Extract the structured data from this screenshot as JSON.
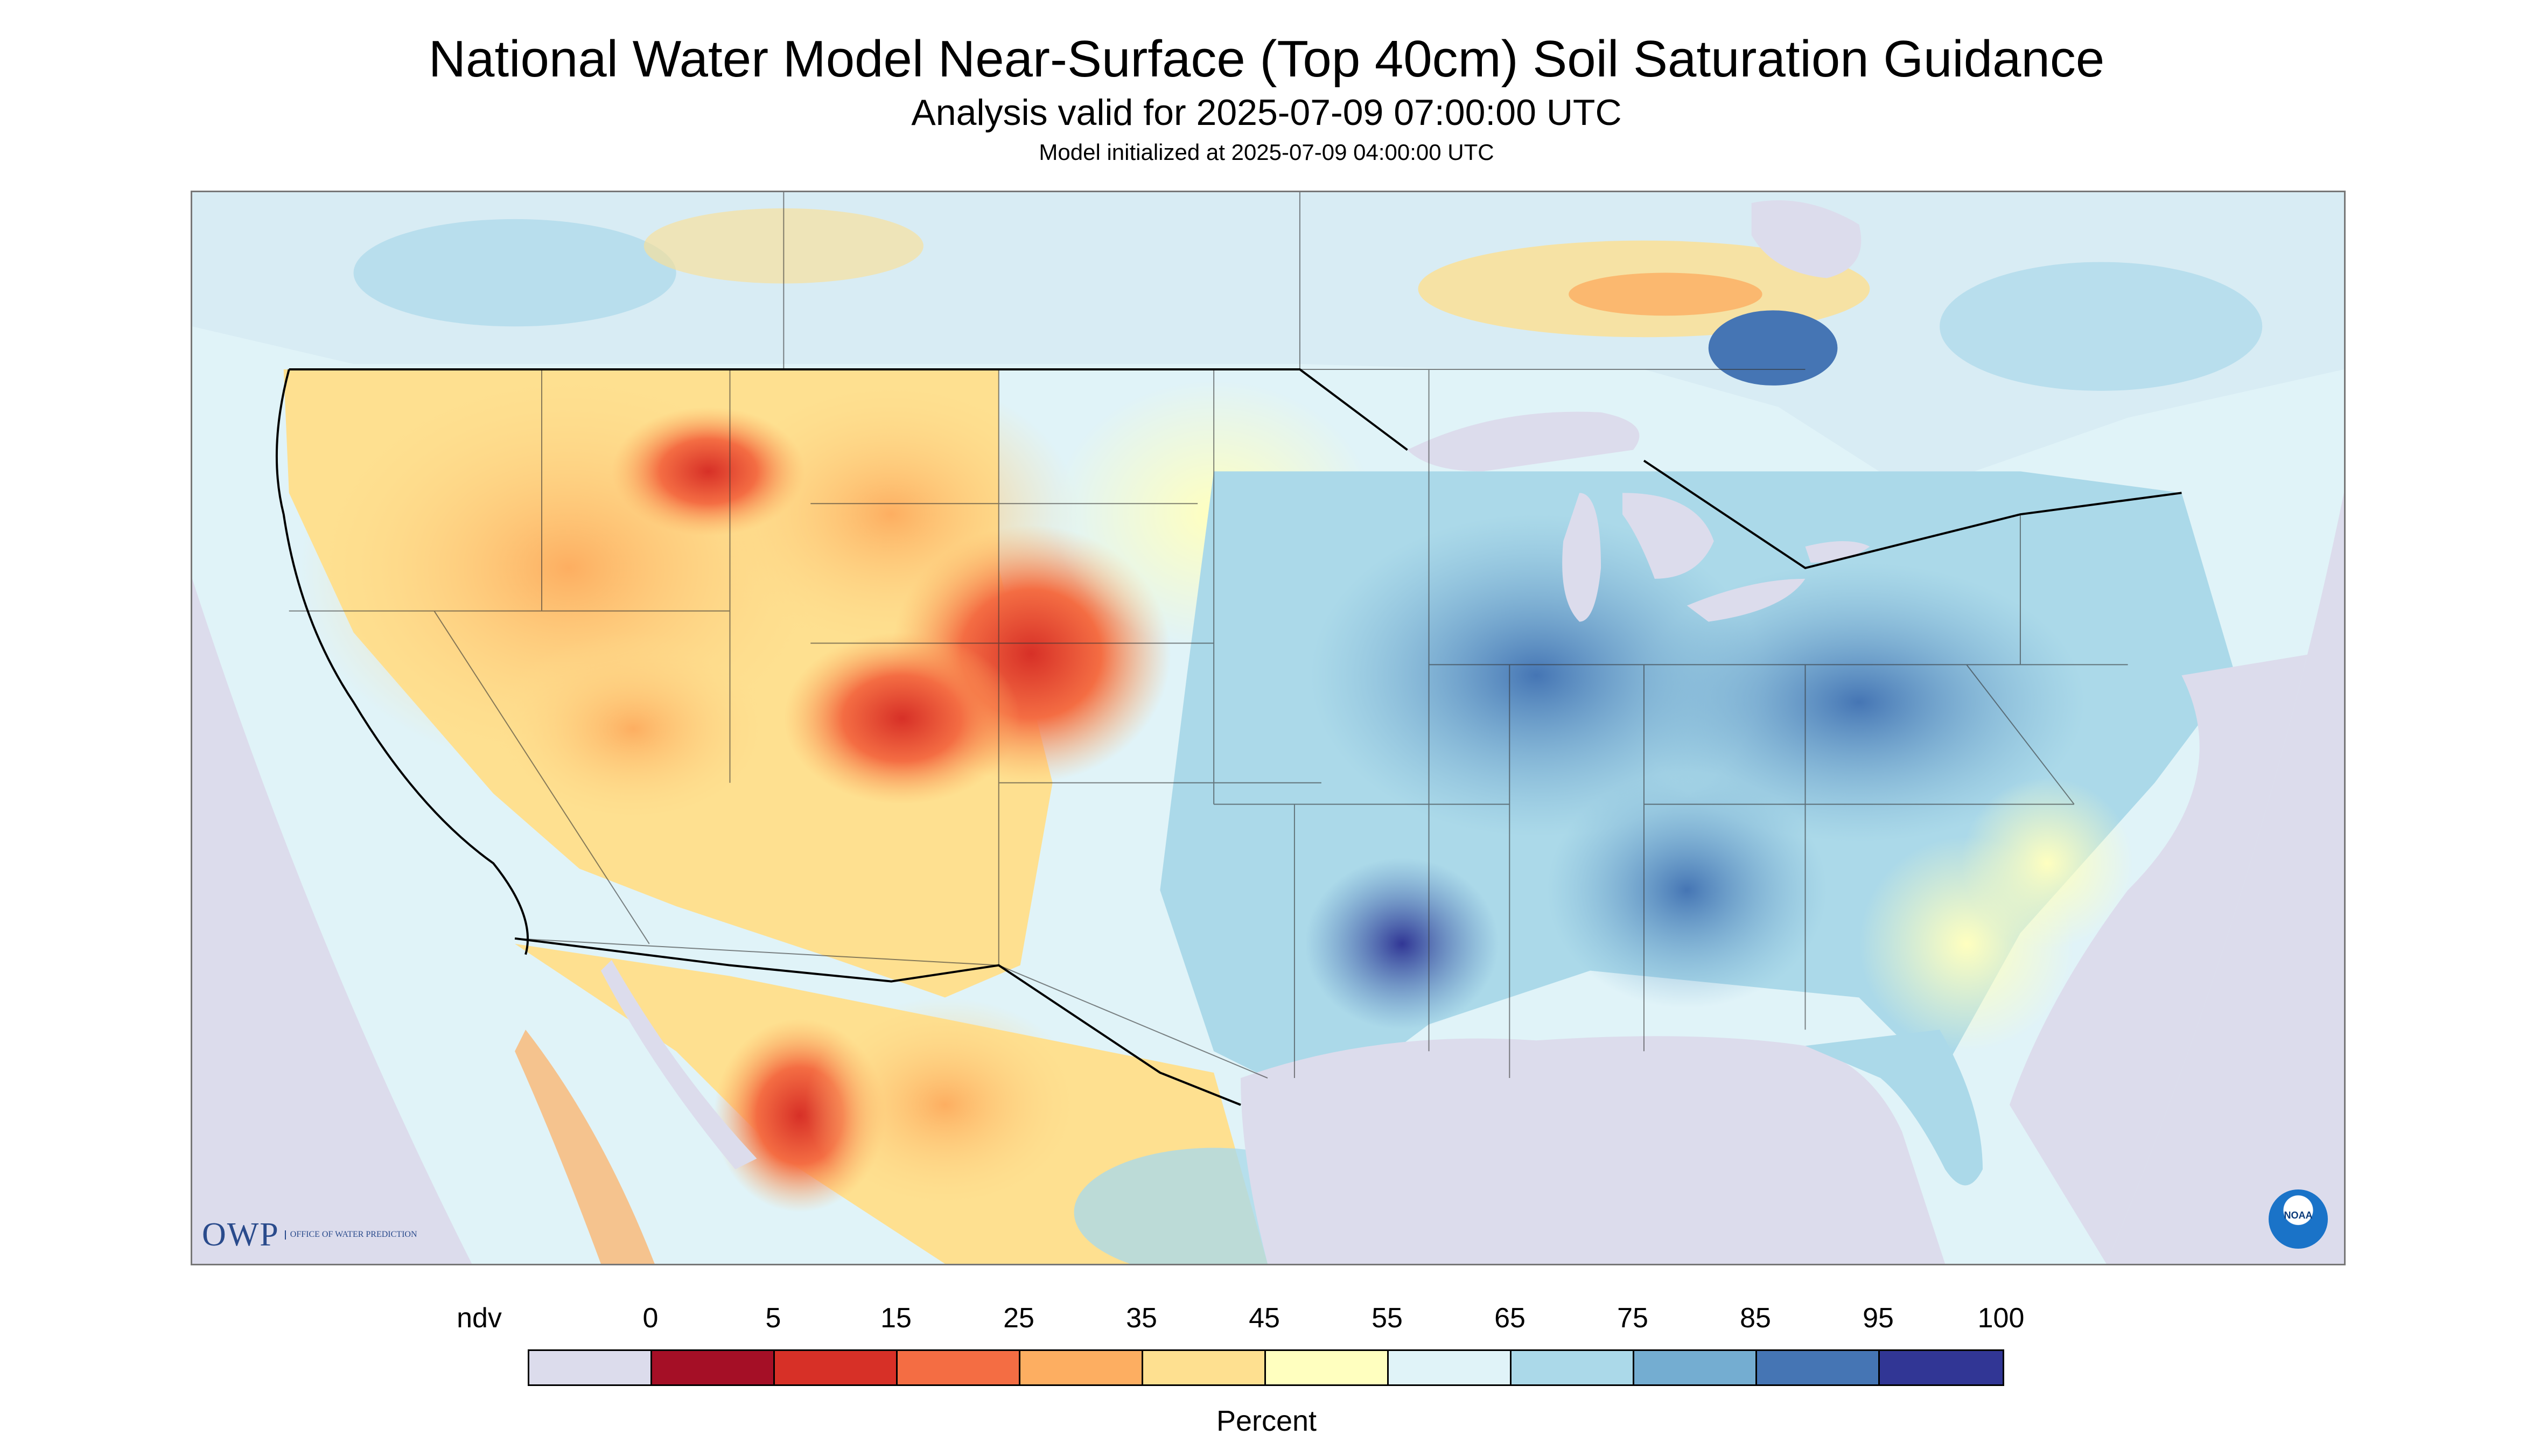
{
  "header": {
    "title": "National Water Model Near-Surface (Top 40cm) Soil Saturation Guidance",
    "subtitle": "Analysis valid for 2025-07-09 07:00:00 UTC",
    "init": "Model initialized at 2025-07-09 04:00:00 UTC"
  },
  "logos": {
    "owp_text": "OWP",
    "owp_small": "OFFICE OF WATER PREDICTION",
    "noaa_text": "NOAA"
  },
  "legend": {
    "labels": [
      "ndv",
      "0",
      "5",
      "15",
      "25",
      "35",
      "45",
      "55",
      "65",
      "75",
      "85",
      "95",
      "100"
    ],
    "colors": [
      "#dcdcec",
      "#a50f26",
      "#d73027",
      "#f46d43",
      "#fdae61",
      "#fee090",
      "#ffffbf",
      "#e0f3f8",
      "#abd9e9",
      "#74add1",
      "#4575b4",
      "#313695"
    ],
    "units": "Percent"
  }
}
